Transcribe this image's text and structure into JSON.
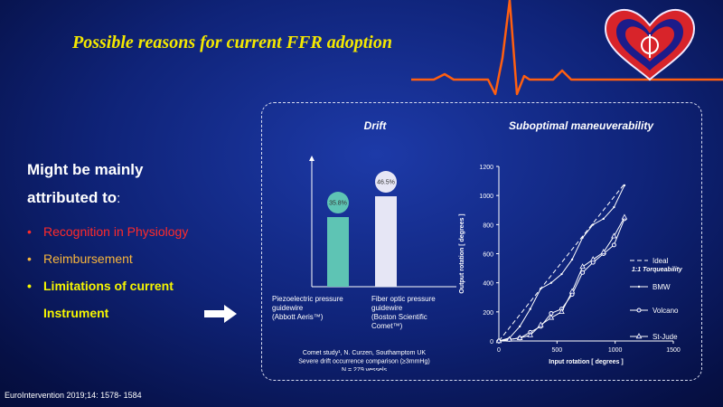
{
  "title": "Possible reasons for current FFR adoption",
  "left": {
    "headline_line1": "Might be mainly",
    "headline_line2": "attributed to",
    "headline_colon": ":",
    "bullets": [
      {
        "text": "Recognition in Physiology",
        "color": "#ff2a2a"
      },
      {
        "text": "Reimbursement",
        "color": "#f7b53c"
      },
      {
        "text": "Limitations of current",
        "color": "#f6f600"
      },
      {
        "text": "Instrument",
        "color": "#f6f600"
      }
    ],
    "bullet_glyph": "•",
    "arrow_icon": "right-arrow-icon"
  },
  "reference": "EuroIntervention 2019;14: 1578- 1584",
  "colors": {
    "title": "#f4e800",
    "background": "#0f2378",
    "drift_bar_1": "#5ec4b4",
    "drift_bar_2": "#e6e6f5"
  },
  "chart_data": [
    {
      "type": "bar",
      "title": "Drift",
      "categories": [
        "Piezoelectric pressure guidewire (Abbott Aeris™)",
        "Fiber optic pressure guidewire (Boston Scientific Comet™)"
      ],
      "category_lines": [
        [
          "Piezoelectric pressure",
          "guidewire",
          "(Abbott Aeris™)"
        ],
        [
          "Fiber optic pressure",
          "guidewire",
          "(Boston Scientific",
          "Comet™)"
        ]
      ],
      "values": [
        35.8,
        46.5
      ],
      "value_labels": [
        "35.8%",
        "46.5%"
      ],
      "ylim": [
        0,
        60
      ],
      "footnote_lines": [
        "Comet study¹, N. Curzen, Southamptom  UK",
        "Severe  drift occurrence  comparison  (≥3mmHg)",
        "N = 279 vessels"
      ]
    },
    {
      "type": "line",
      "title": "Suboptimal maneuverability",
      "xlabel": "Input rotation [ degrees ]",
      "ylabel": "Output rotation [ degrees ]",
      "xlim": [
        0,
        1500
      ],
      "ylim": [
        0,
        1200
      ],
      "xticks": [
        0,
        500,
        1000,
        1500
      ],
      "yticks": [
        0,
        200,
        400,
        600,
        800,
        1000,
        1200
      ],
      "legend": "right",
      "series": [
        {
          "name": "Ideal",
          "subtitle": "1:1 Torqueability",
          "x": [
            0,
            1080
          ],
          "y": [
            0,
            1080
          ]
        },
        {
          "name": "BMW",
          "x": [
            0,
            90,
            180,
            270,
            360,
            450,
            540,
            630,
            720,
            810,
            900,
            990,
            1080
          ],
          "y": [
            0,
            20,
            100,
            220,
            360,
            400,
            460,
            560,
            710,
            800,
            840,
            920,
            1070
          ]
        },
        {
          "name": "Volcano",
          "x": [
            0,
            90,
            180,
            270,
            360,
            450,
            540,
            630,
            720,
            810,
            900,
            990,
            1080
          ],
          "y": [
            0,
            10,
            20,
            60,
            100,
            190,
            220,
            320,
            470,
            540,
            600,
            660,
            840
          ]
        },
        {
          "name": "St-Jude",
          "x": [
            0,
            90,
            180,
            270,
            360,
            450,
            540,
            630,
            720,
            810,
            900,
            990,
            1080
          ],
          "y": [
            0,
            10,
            20,
            40,
            110,
            160,
            200,
            340,
            510,
            560,
            610,
            720,
            850
          ]
        }
      ]
    }
  ]
}
